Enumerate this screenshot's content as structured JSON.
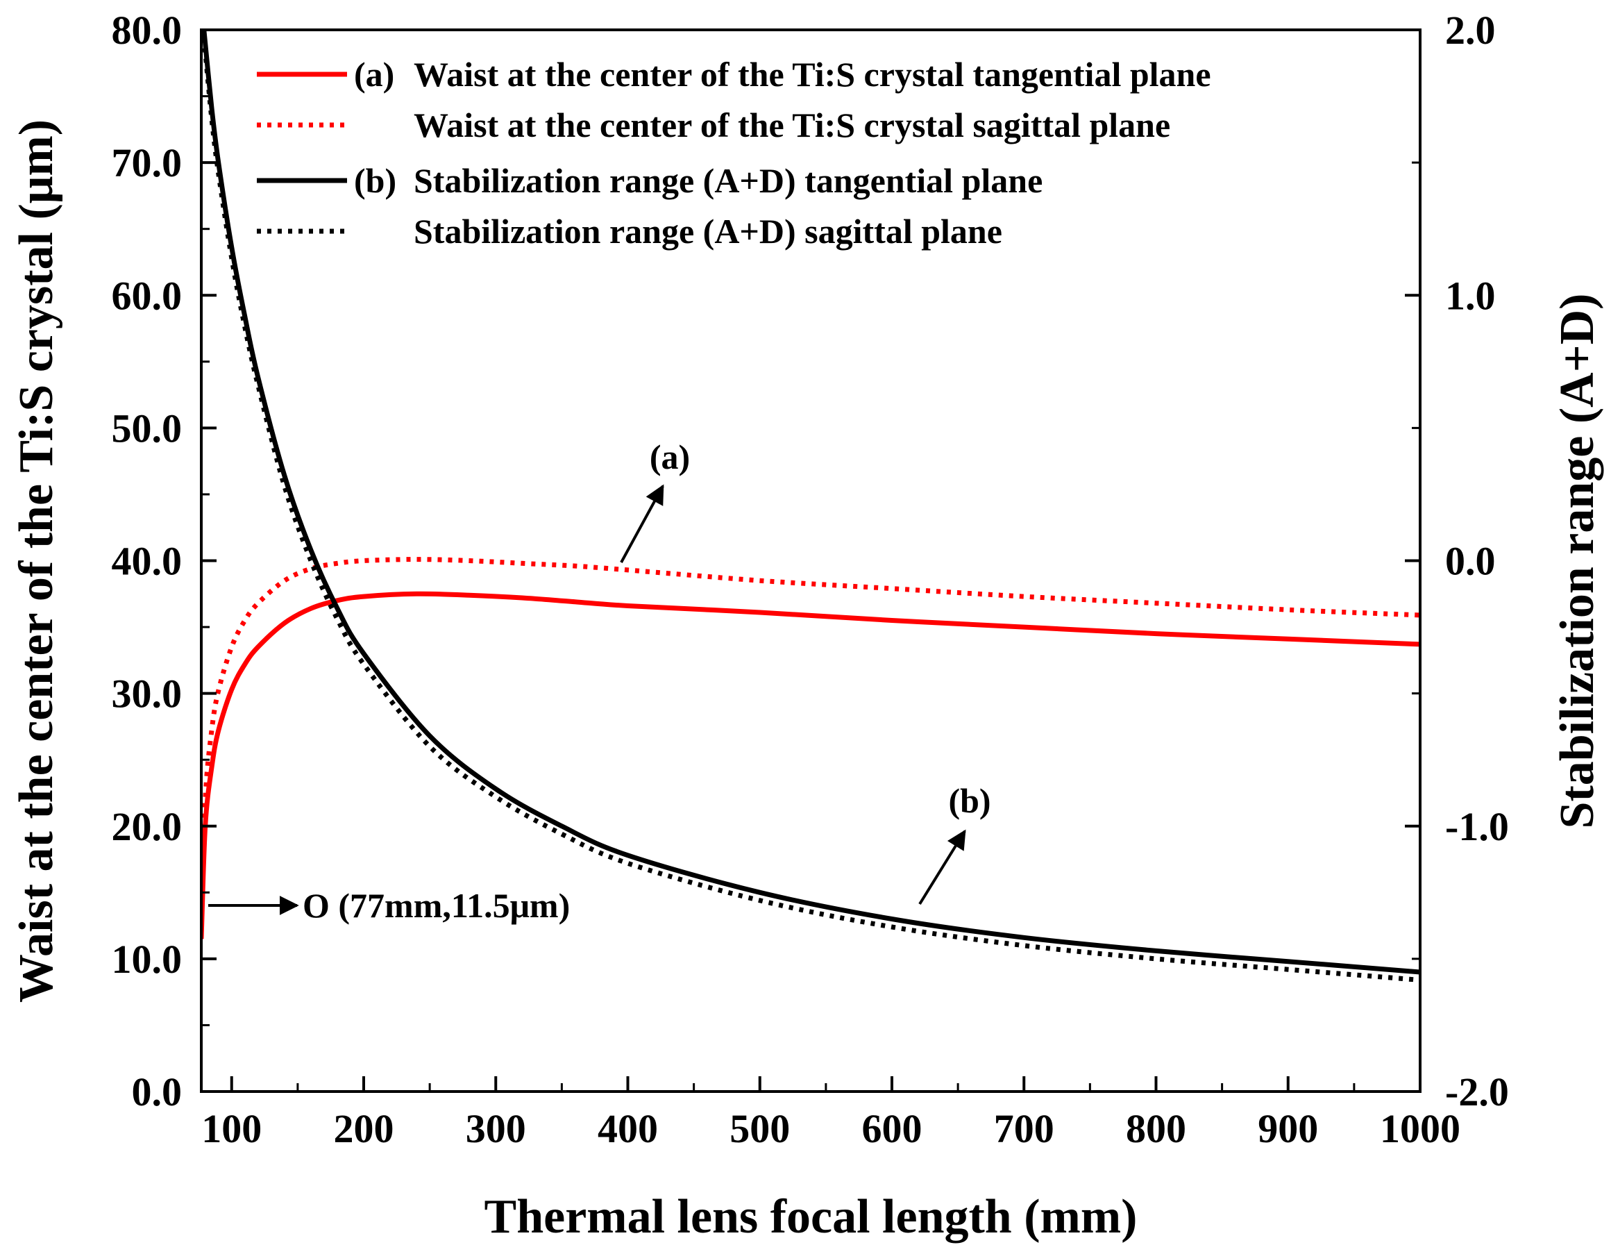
{
  "chart_data": {
    "type": "line",
    "title": "",
    "xlabel": "Thermal lens focal length (mm)",
    "ylabel_left": "Waist at the center of the Ti:S crystal (μm)",
    "ylabel_right": "Stabilization range (A+D)",
    "xlim": [
      77,
      1000
    ],
    "ylim_left": [
      0,
      80
    ],
    "ylim_right": [
      -2,
      2
    ],
    "x_ticks": [
      100,
      200,
      300,
      400,
      500,
      600,
      700,
      800,
      900,
      1000
    ],
    "x_tick_labels": [
      "100",
      "200",
      "300",
      "400",
      "500",
      "600",
      "700",
      "800",
      "900",
      "1000"
    ],
    "y_left_ticks": [
      0,
      10,
      20,
      30,
      40,
      50,
      60,
      70,
      80
    ],
    "y_left_tick_labels": [
      "0.0",
      "10.0",
      "20.0",
      "30.0",
      "40.0",
      "50.0",
      "60.0",
      "70.0",
      "80.0"
    ],
    "y_right_ticks": [
      -2,
      -1,
      0,
      1,
      2
    ],
    "y_right_tick_labels": [
      "-2.0",
      "-1.0",
      "0.0",
      "1.0",
      "2.0"
    ],
    "legend_position": "top-left",
    "series": [
      {
        "name": "(a) Waist at the center of the Ti:S crystal tangential plane",
        "axis": "left",
        "color": "#ff0000",
        "dash": "solid",
        "x": [
          77,
          80,
          85,
          90,
          100,
          110,
          120,
          140,
          160,
          180,
          200,
          240,
          280,
          320,
          360,
          400,
          500,
          600,
          700,
          800,
          900,
          1000
        ],
        "y": [
          11.5,
          20,
          24.5,
          27.2,
          30.3,
          32.2,
          33.5,
          35.3,
          36.4,
          37.0,
          37.3,
          37.5,
          37.4,
          37.2,
          36.9,
          36.6,
          36.1,
          35.5,
          35.0,
          34.5,
          34.1,
          33.7
        ]
      },
      {
        "name": "Waist at the center of the Ti:S crystal sagittal plane",
        "axis": "left",
        "color": "#ff0000",
        "dash": "dotted",
        "x": [
          77,
          80,
          85,
          90,
          100,
          110,
          120,
          140,
          160,
          180,
          200,
          240,
          280,
          320,
          360,
          400,
          500,
          600,
          700,
          800,
          900,
          1000
        ],
        "y": [
          12,
          22,
          27.3,
          30.2,
          33.5,
          35.5,
          36.8,
          38.5,
          39.4,
          39.8,
          40.0,
          40.1,
          40.0,
          39.8,
          39.6,
          39.3,
          38.5,
          37.9,
          37.3,
          36.8,
          36.3,
          35.9
        ]
      },
      {
        "name": "(b) Stabilization range (A+D) tangential plane",
        "axis": "right",
        "color": "#000000",
        "dash": "solid",
        "x": [
          79,
          85,
          90,
          100,
          110,
          120,
          140,
          160,
          180,
          200,
          250,
          300,
          350,
          400,
          500,
          600,
          700,
          800,
          900,
          1000
        ],
        "y": [
          2.0,
          1.7,
          1.5,
          1.18,
          0.92,
          0.69,
          0.32,
          0.04,
          -0.18,
          -0.35,
          -0.66,
          -0.86,
          -1.0,
          -1.11,
          -1.25,
          -1.35,
          -1.42,
          -1.47,
          -1.51,
          -1.55
        ]
      },
      {
        "name": "Stabilization range (A+D) sagittal plane",
        "axis": "right",
        "color": "#000000",
        "dash": "dotted",
        "x": [
          79,
          85,
          90,
          100,
          110,
          120,
          140,
          160,
          180,
          200,
          250,
          300,
          350,
          400,
          500,
          600,
          700,
          800,
          900,
          1000
        ],
        "y": [
          1.97,
          1.66,
          1.46,
          1.14,
          0.88,
          0.66,
          0.28,
          0.0,
          -0.22,
          -0.39,
          -0.7,
          -0.89,
          -1.03,
          -1.14,
          -1.28,
          -1.38,
          -1.45,
          -1.5,
          -1.54,
          -1.58
        ]
      }
    ],
    "legend": [
      {
        "prefix": "(a)",
        "label": "Waist at the center of the Ti:S crystal tangential plane",
        "color": "#ff0000",
        "dash": "solid"
      },
      {
        "prefix": "",
        "label": "Waist at the center of the Ti:S crystal sagittal plane",
        "color": "#ff0000",
        "dash": "dotted"
      },
      {
        "prefix": "(b)",
        "label": "Stabilization range (A+D) tangential plane",
        "color": "#000000",
        "dash": "solid"
      },
      {
        "prefix": "",
        "label": "Stabilization range (A+D) sagittal plane",
        "color": "#000000",
        "dash": "dotted"
      }
    ],
    "annotations": [
      {
        "text": "(a)",
        "target_x": 400,
        "target_y_left": 39.3
      },
      {
        "text": "(b)",
        "target_x": 600,
        "target_y_right": -1.36
      },
      {
        "text": "O (77mm,11.5μm)",
        "point_x": 77,
        "point_y_left": 11.5
      }
    ]
  }
}
